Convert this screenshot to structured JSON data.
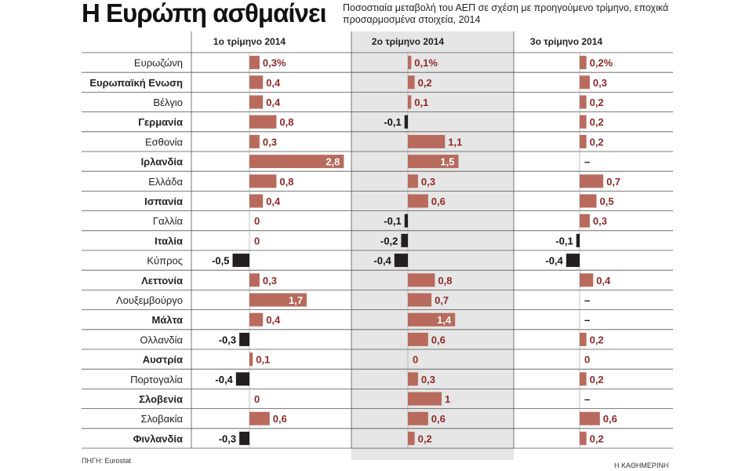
{
  "title": "Η Ευρώπη ασθμαίνει",
  "subtitle": "Ποσοστιαία μεταβολή του ΑΕΠ σε σχέση με προηγούμενο τρίμηνο, εποχικά προσαρμοσμένα στοιχεία, 2014",
  "source": "ΠΗΓΗ: Eurostat",
  "credit": "Η ΚΑΘΗΜΕΡΙΝΗ",
  "colors": {
    "positive": "#b86a5c",
    "negative": "#231f20",
    "highlight": "#e6e6e6",
    "positive_label": "#8e2a2a",
    "negative_label": "#111111"
  },
  "chart_data": {
    "type": "bar",
    "orientation": "horizontal",
    "categories": [
      "Ευρωζώνη",
      "Ευρωπαϊκή Ενωση",
      "Βέλγιο",
      "Γερμανία",
      "Εσθονία",
      "Ιρλανδία",
      "Ελλάδα",
      "Ισπανία",
      "Γαλλία",
      "Ιταλία",
      "Κύπρος",
      "Λεττονία",
      "Λουξεμβούργο",
      "Μάλτα",
      "Ολλανδία",
      "Αυστρία",
      "Πορτογαλία",
      "Σλοβενία",
      "Σλοβακία",
      "Φινλανδία"
    ],
    "bold_categories": [
      1,
      3,
      5,
      7,
      9,
      11,
      13,
      15,
      17,
      19
    ],
    "series": [
      {
        "name": "1ο τρίμηνο 2014",
        "values": [
          0.3,
          0.4,
          0.4,
          0.8,
          0.3,
          2.8,
          0.8,
          0.4,
          0,
          0,
          -0.5,
          0.3,
          1.7,
          0.4,
          -0.3,
          0.1,
          -0.4,
          0,
          0.6,
          -0.3
        ],
        "labels": [
          "0,3%",
          "0,4",
          "0,4",
          "0,8",
          "0,3",
          "2,8",
          "0,8",
          "0,4",
          "0",
          "0",
          "-0,5",
          "0,3",
          "1,7",
          "0,4",
          "-0,3",
          "0,1",
          "-0,4",
          "0",
          "0,6",
          "-0,3"
        ]
      },
      {
        "name": "2ο τρίμηνο 2014",
        "values": [
          0.1,
          0.2,
          0.1,
          -0.1,
          1.1,
          1.5,
          0.3,
          0.6,
          -0.1,
          -0.2,
          -0.4,
          0.8,
          0.7,
          1.4,
          0.6,
          0,
          0.3,
          1,
          0.6,
          0.2
        ],
        "labels": [
          "0,1%",
          "0,2",
          "0,1",
          "-0,1",
          "1,1",
          "1,5",
          "0,3",
          "0,6",
          "-0,1",
          "-0,2",
          "-0,4",
          "0,8",
          "0,7",
          "1,4",
          "0,6",
          "0",
          "0,3",
          "1",
          "0,6",
          "0,2"
        ]
      },
      {
        "name": "3ο τρίμηνο 2014",
        "values": [
          0.2,
          0.3,
          0.2,
          0.2,
          0.2,
          null,
          0.7,
          0.5,
          0.3,
          -0.1,
          -0.4,
          0.4,
          null,
          null,
          0.2,
          0,
          0.2,
          null,
          0.6,
          0.2
        ],
        "labels": [
          "0,2%",
          "0,3",
          "0,2",
          "0,2",
          "0,2",
          "–",
          "0,7",
          "0,5",
          "0,3",
          "-0,1",
          "-0,4",
          "0,4",
          "–",
          "–",
          "0,2",
          "0",
          "0,2",
          "–",
          "0,6",
          "0,2"
        ]
      }
    ],
    "highlighted_series": 1
  }
}
